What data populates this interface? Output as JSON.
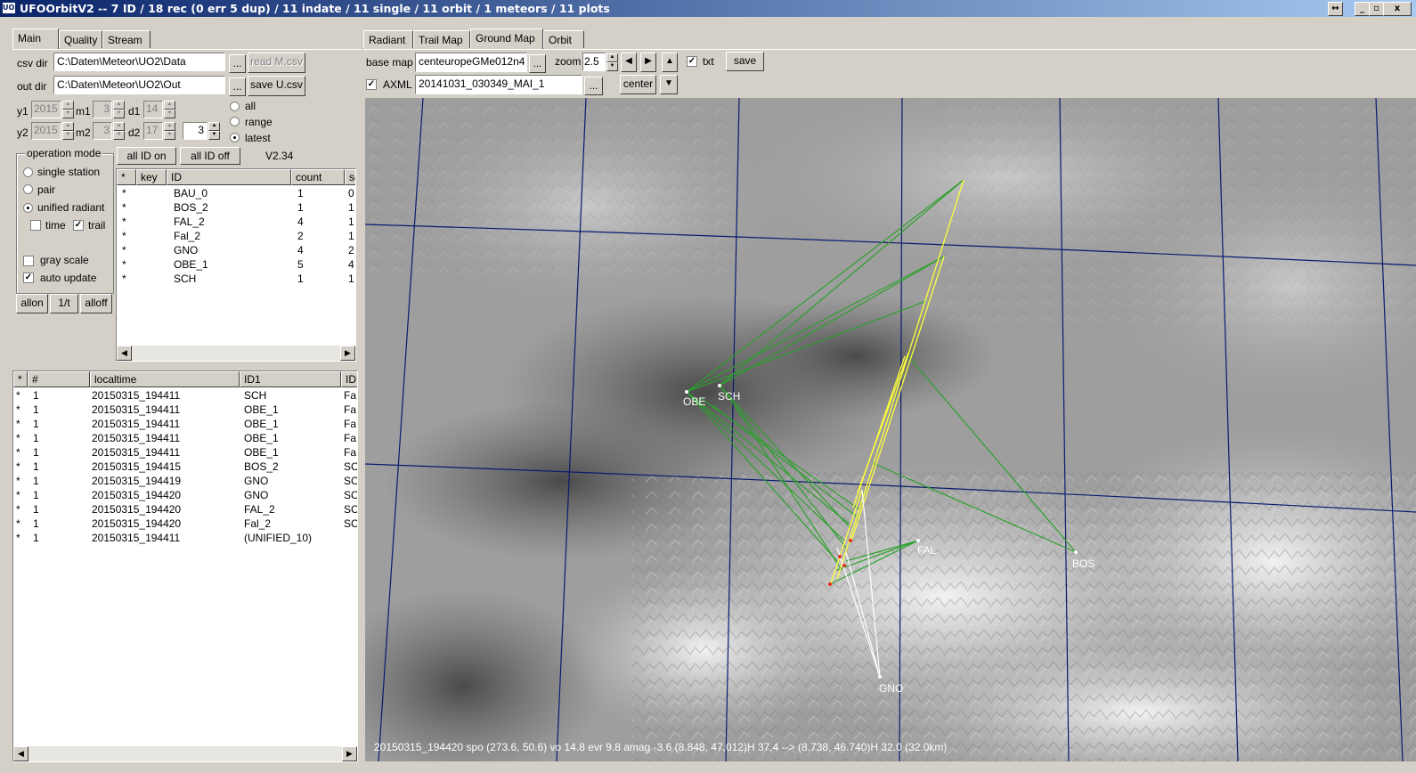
{
  "window": {
    "icon_text": "UO2",
    "title": "UFOOrbitV2 -- 7 ID / 18 rec (0 err 5 dup) / 11 indate / 11 single / 11 orbit / 1 meteors / 11 plots",
    "controls": [
      "↔",
      "_",
      "▫",
      "x"
    ]
  },
  "left_tabs": [
    "Main",
    "Quality",
    "Stream"
  ],
  "main": {
    "csv_dir_label": "csv dir",
    "csv_dir_value": "C:\\Daten\\Meteor\\UO2\\Data",
    "browse_label": "...",
    "read_button": "read M.csv",
    "out_dir_label": "out dir",
    "out_dir_value": "C:\\Daten\\Meteor\\UO2\\Out",
    "save_button": "save U.csv",
    "y1_label": "y1",
    "y1_value": "2015",
    "m1_label": "m1",
    "m1_value": "3",
    "d1_label": "d1",
    "d1_value": "14",
    "y2_label": "y2",
    "y2_value": "2015",
    "m2_label": "m2",
    "m2_value": "3",
    "d2_label": "d2",
    "d2_value": "17",
    "latest_count": "3",
    "range_options": [
      "all",
      "range",
      "latest"
    ],
    "range_selected": "latest",
    "operation_mode_title": "operation mode",
    "modes": [
      "single station",
      "pair",
      "unified radiant"
    ],
    "mode_selected": "unified radiant",
    "time_label": "time",
    "time_checked": false,
    "trail_label": "trail",
    "trail_checked": true,
    "gray_scale_label": "gray scale",
    "gray_scale_checked": false,
    "auto_update_label": "auto update",
    "auto_update_checked": true,
    "allon_button": "allon",
    "onet_button": "1/t",
    "alloff_button": "alloff",
    "all_id_on_button": "all ID on",
    "all_id_off_button": "all ID off",
    "version": "V2.34"
  },
  "id_table": {
    "headers": [
      "*",
      "key",
      "ID",
      "count",
      "sc"
    ],
    "rows": [
      {
        "star": "*",
        "id": "BAU_0",
        "count": "1",
        "s": "0"
      },
      {
        "star": "*",
        "id": "BOS_2",
        "count": "1",
        "s": "1"
      },
      {
        "star": "*",
        "id": "FAL_2",
        "count": "4",
        "s": "1"
      },
      {
        "star": "*",
        "id": "Fal_2",
        "count": "2",
        "s": "1"
      },
      {
        "star": "*",
        "id": "GNO",
        "count": "4",
        "s": "2"
      },
      {
        "star": "*",
        "id": "OBE_1",
        "count": "5",
        "s": "4"
      },
      {
        "star": "*",
        "id": "SCH",
        "count": "1",
        "s": "1"
      }
    ]
  },
  "record_table": {
    "headers": [
      "*",
      "#",
      "localtime",
      "ID1",
      "ID"
    ],
    "rows": [
      {
        "star": "*",
        "num": "1",
        "time": "20150315_194411",
        "id1": "SCH",
        "id": "Fa"
      },
      {
        "star": "*",
        "num": "1",
        "time": "20150315_194411",
        "id1": "OBE_1",
        "id": "Fa"
      },
      {
        "star": "*",
        "num": "1",
        "time": "20150315_194411",
        "id1": "OBE_1",
        "id": "Fa"
      },
      {
        "star": "*",
        "num": "1",
        "time": "20150315_194411",
        "id1": "OBE_1",
        "id": "Fa"
      },
      {
        "star": "*",
        "num": "1",
        "time": "20150315_194411",
        "id1": "OBE_1",
        "id": "Fa"
      },
      {
        "star": "*",
        "num": "1",
        "time": "20150315_194415",
        "id1": "BOS_2",
        "id": "SC"
      },
      {
        "star": "*",
        "num": "1",
        "time": "20150315_194419",
        "id1": "GNO",
        "id": "SC"
      },
      {
        "star": "*",
        "num": "1",
        "time": "20150315_194420",
        "id1": "GNO",
        "id": "SC"
      },
      {
        "star": "*",
        "num": "1",
        "time": "20150315_194420",
        "id1": "FAL_2",
        "id": "SC"
      },
      {
        "star": "*",
        "num": "1",
        "time": "20150315_194420",
        "id1": "Fal_2",
        "id": "SC"
      },
      {
        "star": "*",
        "num": "1",
        "time": "20150315_194411",
        "id1": "(UNIFIED_10)",
        "id": ""
      }
    ]
  },
  "right_tabs": [
    "Radiant",
    "Trail Map",
    "Ground Map",
    "Orbit"
  ],
  "right_active_tab": "Ground Map",
  "map_toolbar": {
    "base_map_label": "base map",
    "base_map_value": "centeuropeGMe012n4",
    "browse_label": "...",
    "zoom_label": "zoom",
    "zoom_value": "2.5",
    "txt_label": "txt",
    "txt_checked": true,
    "save_button": "save",
    "axml_label": "AXML",
    "axml_checked": true,
    "axml_value": "20141031_030349_MAI_1",
    "center_button": "center"
  },
  "map": {
    "stations": [
      "OBE",
      "SCH",
      "FAL",
      "BOS",
      "GNO"
    ],
    "status_text": "20150315_194420  spo (273.6, 50.6) vo 14.8 evr 9.8 amag -3.6  (8.848, 47.012)H 37.4 --> (8.738, 46.740)H 32.0 (32.0km)",
    "colors": {
      "green": "#2ea02e",
      "yellow": "#ffff3c",
      "white": "#ffffff",
      "grid": "#0a1a6e"
    }
  }
}
